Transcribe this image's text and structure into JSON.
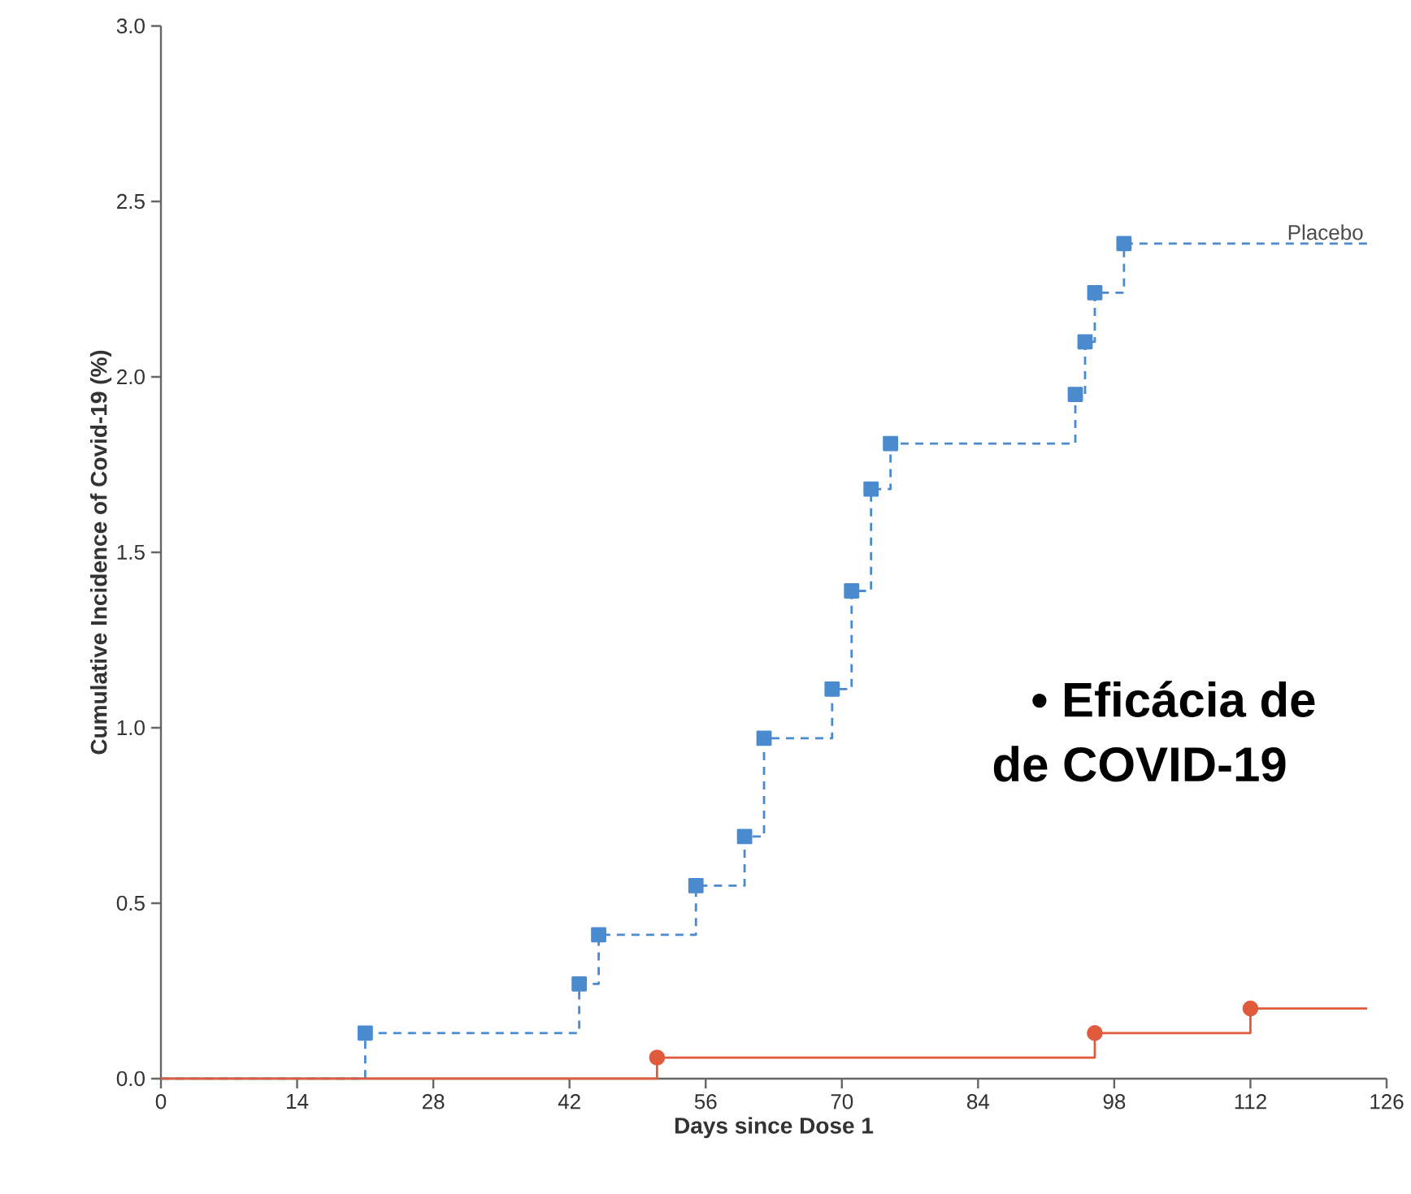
{
  "chart_data": {
    "type": "step",
    "xlabel": "Days since Dose 1",
    "ylabel": "Cumulative Incidence of Covid-19 (%)",
    "xlim": [
      0,
      126
    ],
    "ylim": [
      0,
      3
    ],
    "xticks": [
      0,
      14,
      28,
      42,
      56,
      70,
      84,
      98,
      112,
      126
    ],
    "yticks": [
      {
        "value": 0,
        "label": "0.0"
      },
      0.5,
      {
        "value": 1,
        "label": "1.0"
      },
      1.5,
      {
        "value": 2,
        "label": "2.0"
      },
      2.5,
      {
        "value": 3,
        "label": "3.0"
      }
    ],
    "grid": false,
    "series": [
      {
        "name": "Placebo",
        "color": "#4a8bcf",
        "line_style": "dashed",
        "marker": "square",
        "x": [
          0,
          21,
          43,
          45,
          55,
          60,
          62,
          69,
          71,
          73,
          75,
          94,
          95,
          96,
          99,
          124
        ],
        "values": [
          0,
          0.13,
          0.27,
          0.41,
          0.55,
          0.69,
          0.97,
          1.11,
          1.39,
          1.68,
          1.81,
          1.95,
          2.1,
          2.24,
          2.38,
          2.38
        ]
      },
      {
        "color": "#e05a3c",
        "line_style": "solid",
        "marker": "circle",
        "x": [
          0,
          51,
          96,
          112,
          124
        ],
        "values": [
          0,
          0.06,
          0.13,
          0.2,
          0.2
        ]
      }
    ],
    "annotations": [
      "• Eficácia de",
      "de COVID-19"
    ]
  }
}
